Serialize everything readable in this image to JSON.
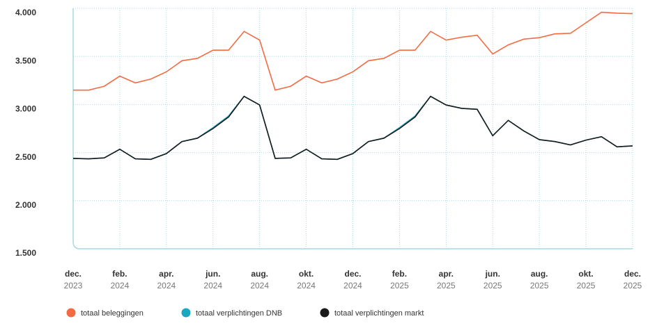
{
  "chart_data": {
    "type": "line",
    "x": [
      0,
      1,
      2,
      3,
      4,
      5,
      6,
      7,
      8,
      9,
      10,
      11,
      12,
      13,
      14,
      15,
      16,
      17,
      18,
      19,
      20,
      21,
      22,
      23,
      24,
      25,
      26,
      27,
      28,
      29,
      30,
      31,
      32,
      33,
      34,
      35,
      36
    ],
    "xlim": [
      0,
      36
    ],
    "xticks": [
      {
        "value": 0,
        "label": "dec.",
        "sublabel": "2023"
      },
      {
        "value": 3,
        "label": "feb.",
        "sublabel": "2024"
      },
      {
        "value": 6,
        "label": "apr.",
        "sublabel": "2024"
      },
      {
        "value": 9,
        "label": "jun.",
        "sublabel": "2024"
      },
      {
        "value": 12,
        "label": "aug.",
        "sublabel": "2024"
      },
      {
        "value": 15,
        "label": "okt.",
        "sublabel": "2024"
      },
      {
        "value": 18,
        "label": "dec.",
        "sublabel": "2024"
      },
      {
        "value": 21,
        "label": "feb.",
        "sublabel": "2025"
      },
      {
        "value": 24,
        "label": "apr.",
        "sublabel": "2025"
      },
      {
        "value": 27,
        "label": "jun.",
        "sublabel": "2025"
      },
      {
        "value": 30,
        "label": "aug.",
        "sublabel": "2025"
      },
      {
        "value": 33,
        "label": "okt.",
        "sublabel": "2025"
      },
      {
        "value": 36,
        "label": "dec.",
        "sublabel": "2025"
      }
    ],
    "ylim": [
      1500,
      4000
    ],
    "yticks": [
      {
        "value": 1500,
        "label": "1.500"
      },
      {
        "value": 2000,
        "label": "2.000"
      },
      {
        "value": 2500,
        "label": "2.500"
      },
      {
        "value": 3000,
        "label": "3.000"
      },
      {
        "value": 3500,
        "label": "3.500"
      },
      {
        "value": 4000,
        "label": "4.000"
      }
    ],
    "grid": true,
    "series": [
      {
        "name": "totaal beleggingen",
        "color": "#f26b43",
        "values": [
          3150,
          3150,
          3190,
          3295,
          3225,
          3265,
          3340,
          3455,
          3480,
          3565,
          3565,
          3760,
          3670,
          3150,
          3190,
          3295,
          3225,
          3265,
          3340,
          3455,
          3480,
          3565,
          3565,
          3760,
          3670,
          3700,
          3720,
          3525,
          3620,
          3680,
          3695,
          3735,
          3740,
          3850,
          3960,
          3950,
          3945
        ]
      },
      {
        "name": "totaal verplichtingen DNB",
        "color": "#1aa7c0",
        "values": [
          2440,
          2435,
          2445,
          2535,
          2435,
          2430,
          2490,
          2615,
          2650,
          2760,
          2880,
          3085,
          2995,
          2440,
          2445,
          2535,
          2435,
          2430,
          2490,
          2615,
          2650,
          2760,
          2880,
          3085,
          2995,
          2960,
          2950,
          2675,
          2835,
          2725,
          2635,
          2615,
          2580,
          2630,
          2665,
          2560,
          2570
        ]
      },
      {
        "name": "totaal verplichtingen markt",
        "color": "#1a1a1a",
        "values": [
          2440,
          2435,
          2445,
          2535,
          2435,
          2430,
          2490,
          2615,
          2650,
          2750,
          2870,
          3085,
          2995,
          2440,
          2445,
          2535,
          2435,
          2430,
          2490,
          2615,
          2650,
          2750,
          2870,
          3085,
          2995,
          2960,
          2950,
          2675,
          2835,
          2725,
          2635,
          2615,
          2580,
          2630,
          2665,
          2560,
          2570
        ]
      }
    ]
  }
}
